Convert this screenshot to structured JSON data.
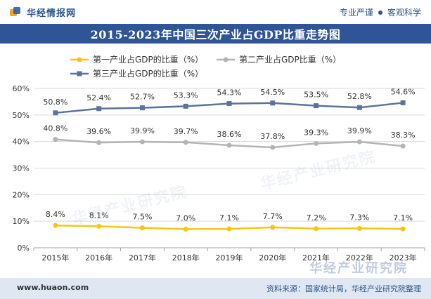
{
  "header": {
    "brand_name": "华经情报网",
    "slogan_left": "专业严谨",
    "slogan_right": "客观科学"
  },
  "title": "2015-2023年中国三次产业占GDP比重走势图",
  "footer": {
    "site": "www.huaon.com",
    "source": "资料来源：国家统计局，华经产业研究院整理"
  },
  "watermark": {
    "text": "华经产业研究院"
  },
  "colors": {
    "primary_series": "#f5c518",
    "secondary_series": "#b4b4b4",
    "tertiary_series": "#5a7499",
    "title_bar": "#2f5597",
    "footer_bar": "#dfe7f3"
  },
  "chart_data": {
    "type": "line",
    "title": "2015-2023年中国三次产业占GDP比重走势图",
    "categories": [
      "2015年",
      "2016年",
      "2017年",
      "2018年",
      "2019年",
      "2020年",
      "2021年",
      "2022年",
      "2023年"
    ],
    "series": [
      {
        "name": "第一产业占GDP的比重（%）",
        "values": [
          8.4,
          8.1,
          7.5,
          7.0,
          7.1,
          7.7,
          7.2,
          7.3,
          7.1
        ],
        "labels": [
          "8.4%",
          "8.1%",
          "7.5%",
          "7.0%",
          "7.1%",
          "7.7%",
          "7.2%",
          "7.3%",
          "7.1%"
        ]
      },
      {
        "name": "第二产业占GDP比重（%）",
        "values": [
          40.8,
          39.6,
          39.9,
          39.7,
          38.6,
          37.8,
          39.3,
          39.9,
          38.3
        ],
        "labels": [
          "40.8%",
          "39.6%",
          "39.9%",
          "39.7%",
          "38.6%",
          "37.8%",
          "39.3%",
          "39.9%",
          "38.3%"
        ]
      },
      {
        "name": "第三产业占GDP的比重（%）",
        "values": [
          50.8,
          52.4,
          52.7,
          53.3,
          54.3,
          54.5,
          53.5,
          52.8,
          54.6
        ],
        "labels": [
          "50.8%",
          "52.4%",
          "52.7%",
          "53.3%",
          "54.3%",
          "54.5%",
          "53.5%",
          "52.8%",
          "54.6%"
        ]
      }
    ],
    "y_ticks": [
      "0%",
      "10%",
      "20%",
      "30%",
      "40%",
      "50%",
      "60%"
    ],
    "y_tick_values": [
      0,
      10,
      20,
      30,
      40,
      50,
      60
    ],
    "ylim": [
      0,
      60
    ],
    "xlabel": "",
    "ylabel": "",
    "grid": true,
    "legend_position": "top-left"
  }
}
